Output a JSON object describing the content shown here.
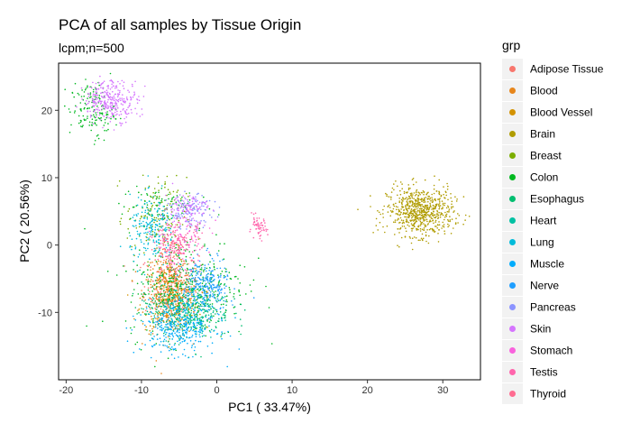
{
  "chart_data": {
    "type": "scatter",
    "title": "PCA of all samples by Tissue Origin",
    "subtitle": "lcpm;n=500",
    "xlabel": "PC1 ( 33.47%)",
    "ylabel": "PC2 ( 20.56%)",
    "xlim": [
      -21,
      35
    ],
    "ylim": [
      -20,
      27
    ],
    "xticks": [
      -20,
      -10,
      0,
      10,
      20,
      30
    ],
    "yticks": [
      -10,
      0,
      10,
      20
    ],
    "legend_title": "grp",
    "legend_position": "right",
    "grid": false,
    "series": [
      {
        "name": "Adipose Tissue",
        "color": "#F8766D",
        "clusters": [
          {
            "cx": -6,
            "cy": -6,
            "sx": 1.8,
            "sy": 2.5,
            "n": 250
          }
        ]
      },
      {
        "name": "Blood",
        "color": "#E7861B",
        "clusters": [
          {
            "cx": -6.5,
            "cy": -7,
            "sx": 1.5,
            "sy": 3,
            "n": 280
          }
        ]
      },
      {
        "name": "Blood Vessel",
        "color": "#D39200",
        "clusters": [
          {
            "cx": -6,
            "cy": -8,
            "sx": 2,
            "sy": 2.5,
            "n": 250
          }
        ]
      },
      {
        "name": "Brain",
        "color": "#B09C00",
        "clusters": [
          {
            "cx": 27,
            "cy": 5,
            "sx": 2.2,
            "sy": 1.8,
            "n": 700
          }
        ]
      },
      {
        "name": "Breast",
        "color": "#7CAE00",
        "clusters": [
          {
            "cx": -8,
            "cy": 4,
            "sx": 2,
            "sy": 3,
            "n": 150
          }
        ]
      },
      {
        "name": "Colon",
        "color": "#00B81F",
        "clusters": [
          {
            "cx": -4,
            "cy": -6,
            "sx": 4,
            "sy": 4,
            "n": 350
          },
          {
            "cx": -16.5,
            "cy": 20,
            "sx": 1.5,
            "sy": 2,
            "n": 150
          },
          {
            "cx": -8,
            "cy": 6,
            "sx": 2.5,
            "sy": 1.5,
            "n": 80
          }
        ]
      },
      {
        "name": "Esophagus",
        "color": "#00BE70",
        "clusters": [
          {
            "cx": -4,
            "cy": -9,
            "sx": 3,
            "sy": 2.5,
            "n": 350
          }
        ]
      },
      {
        "name": "Heart",
        "color": "#00C1A3",
        "clusters": [
          {
            "cx": -4,
            "cy": -10,
            "sx": 2,
            "sy": 2,
            "n": 150
          }
        ]
      },
      {
        "name": "Lung",
        "color": "#00BBDA",
        "clusters": [
          {
            "cx": -8.5,
            "cy": 2,
            "sx": 1.5,
            "sy": 2.5,
            "n": 200
          }
        ]
      },
      {
        "name": "Muscle",
        "color": "#00ACFC",
        "clusters": [
          {
            "cx": -5,
            "cy": -12,
            "sx": 2.5,
            "sy": 2,
            "n": 350
          }
        ]
      },
      {
        "name": "Nerve",
        "color": "#1F9EFF",
        "clusters": [
          {
            "cx": -1.5,
            "cy": -6,
            "sx": 1.5,
            "sy": 2,
            "n": 250
          }
        ]
      },
      {
        "name": "Pancreas",
        "color": "#8B93FF",
        "clusters": [
          {
            "cx": -3.5,
            "cy": 5,
            "sx": 1.5,
            "sy": 1.2,
            "n": 120
          }
        ]
      },
      {
        "name": "Skin",
        "color": "#D575FE",
        "clusters": [
          {
            "cx": -14,
            "cy": 21.5,
            "sx": 1.8,
            "sy": 1.5,
            "n": 300
          },
          {
            "cx": -4,
            "cy": 5.5,
            "sx": 1.5,
            "sy": 1.2,
            "n": 100
          }
        ]
      },
      {
        "name": "Stomach",
        "color": "#F962DD",
        "clusters": [
          {
            "cx": -5,
            "cy": 1,
            "sx": 2,
            "sy": 2,
            "n": 80
          }
        ]
      },
      {
        "name": "Testis",
        "color": "#FF65AC",
        "clusters": [
          {
            "cx": 5.5,
            "cy": 2.5,
            "sx": 0.6,
            "sy": 0.8,
            "n": 60
          },
          {
            "cx": -5,
            "cy": 0,
            "sx": 1.5,
            "sy": 1.5,
            "n": 120
          }
        ]
      },
      {
        "name": "Thyroid",
        "color": "#FF6C91",
        "clusters": [
          {
            "cx": -6,
            "cy": 0,
            "sx": 1.5,
            "sy": 1.5,
            "n": 60
          }
        ]
      }
    ]
  }
}
